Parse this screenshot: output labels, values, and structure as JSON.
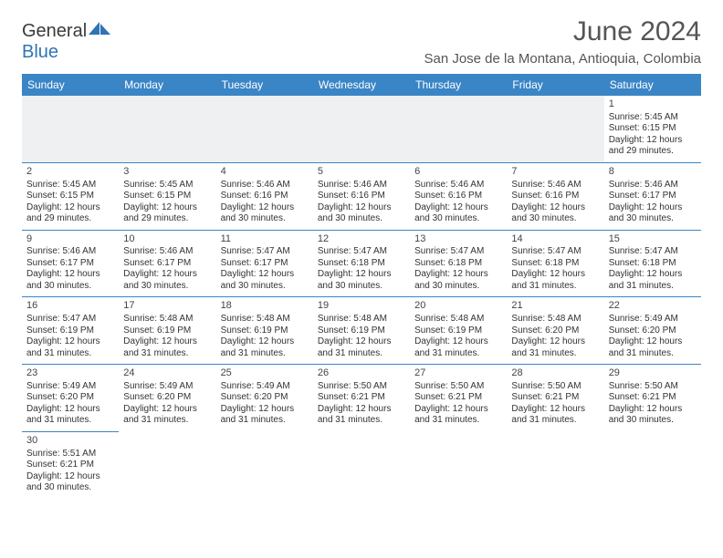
{
  "logo": {
    "text1": "General",
    "text2": "Blue"
  },
  "title": "June 2024",
  "location": "San Jose de la Montana, Antioquia, Colombia",
  "header_bg": "#3a85c6",
  "border_color": "#3a85c6",
  "days_of_week": [
    "Sunday",
    "Monday",
    "Tuesday",
    "Wednesday",
    "Thursday",
    "Friday",
    "Saturday"
  ],
  "weeks": [
    [
      null,
      null,
      null,
      null,
      null,
      null,
      {
        "n": "1",
        "sr": "Sunrise: 5:45 AM",
        "ss": "Sunset: 6:15 PM",
        "d1": "Daylight: 12 hours",
        "d2": "and 29 minutes."
      }
    ],
    [
      {
        "n": "2",
        "sr": "Sunrise: 5:45 AM",
        "ss": "Sunset: 6:15 PM",
        "d1": "Daylight: 12 hours",
        "d2": "and 29 minutes."
      },
      {
        "n": "3",
        "sr": "Sunrise: 5:45 AM",
        "ss": "Sunset: 6:15 PM",
        "d1": "Daylight: 12 hours",
        "d2": "and 29 minutes."
      },
      {
        "n": "4",
        "sr": "Sunrise: 5:46 AM",
        "ss": "Sunset: 6:16 PM",
        "d1": "Daylight: 12 hours",
        "d2": "and 30 minutes."
      },
      {
        "n": "5",
        "sr": "Sunrise: 5:46 AM",
        "ss": "Sunset: 6:16 PM",
        "d1": "Daylight: 12 hours",
        "d2": "and 30 minutes."
      },
      {
        "n": "6",
        "sr": "Sunrise: 5:46 AM",
        "ss": "Sunset: 6:16 PM",
        "d1": "Daylight: 12 hours",
        "d2": "and 30 minutes."
      },
      {
        "n": "7",
        "sr": "Sunrise: 5:46 AM",
        "ss": "Sunset: 6:16 PM",
        "d1": "Daylight: 12 hours",
        "d2": "and 30 minutes."
      },
      {
        "n": "8",
        "sr": "Sunrise: 5:46 AM",
        "ss": "Sunset: 6:17 PM",
        "d1": "Daylight: 12 hours",
        "d2": "and 30 minutes."
      }
    ],
    [
      {
        "n": "9",
        "sr": "Sunrise: 5:46 AM",
        "ss": "Sunset: 6:17 PM",
        "d1": "Daylight: 12 hours",
        "d2": "and 30 minutes."
      },
      {
        "n": "10",
        "sr": "Sunrise: 5:46 AM",
        "ss": "Sunset: 6:17 PM",
        "d1": "Daylight: 12 hours",
        "d2": "and 30 minutes."
      },
      {
        "n": "11",
        "sr": "Sunrise: 5:47 AM",
        "ss": "Sunset: 6:17 PM",
        "d1": "Daylight: 12 hours",
        "d2": "and 30 minutes."
      },
      {
        "n": "12",
        "sr": "Sunrise: 5:47 AM",
        "ss": "Sunset: 6:18 PM",
        "d1": "Daylight: 12 hours",
        "d2": "and 30 minutes."
      },
      {
        "n": "13",
        "sr": "Sunrise: 5:47 AM",
        "ss": "Sunset: 6:18 PM",
        "d1": "Daylight: 12 hours",
        "d2": "and 30 minutes."
      },
      {
        "n": "14",
        "sr": "Sunrise: 5:47 AM",
        "ss": "Sunset: 6:18 PM",
        "d1": "Daylight: 12 hours",
        "d2": "and 31 minutes."
      },
      {
        "n": "15",
        "sr": "Sunrise: 5:47 AM",
        "ss": "Sunset: 6:18 PM",
        "d1": "Daylight: 12 hours",
        "d2": "and 31 minutes."
      }
    ],
    [
      {
        "n": "16",
        "sr": "Sunrise: 5:47 AM",
        "ss": "Sunset: 6:19 PM",
        "d1": "Daylight: 12 hours",
        "d2": "and 31 minutes."
      },
      {
        "n": "17",
        "sr": "Sunrise: 5:48 AM",
        "ss": "Sunset: 6:19 PM",
        "d1": "Daylight: 12 hours",
        "d2": "and 31 minutes."
      },
      {
        "n": "18",
        "sr": "Sunrise: 5:48 AM",
        "ss": "Sunset: 6:19 PM",
        "d1": "Daylight: 12 hours",
        "d2": "and 31 minutes."
      },
      {
        "n": "19",
        "sr": "Sunrise: 5:48 AM",
        "ss": "Sunset: 6:19 PM",
        "d1": "Daylight: 12 hours",
        "d2": "and 31 minutes."
      },
      {
        "n": "20",
        "sr": "Sunrise: 5:48 AM",
        "ss": "Sunset: 6:19 PM",
        "d1": "Daylight: 12 hours",
        "d2": "and 31 minutes."
      },
      {
        "n": "21",
        "sr": "Sunrise: 5:48 AM",
        "ss": "Sunset: 6:20 PM",
        "d1": "Daylight: 12 hours",
        "d2": "and 31 minutes."
      },
      {
        "n": "22",
        "sr": "Sunrise: 5:49 AM",
        "ss": "Sunset: 6:20 PM",
        "d1": "Daylight: 12 hours",
        "d2": "and 31 minutes."
      }
    ],
    [
      {
        "n": "23",
        "sr": "Sunrise: 5:49 AM",
        "ss": "Sunset: 6:20 PM",
        "d1": "Daylight: 12 hours",
        "d2": "and 31 minutes."
      },
      {
        "n": "24",
        "sr": "Sunrise: 5:49 AM",
        "ss": "Sunset: 6:20 PM",
        "d1": "Daylight: 12 hours",
        "d2": "and 31 minutes."
      },
      {
        "n": "25",
        "sr": "Sunrise: 5:49 AM",
        "ss": "Sunset: 6:20 PM",
        "d1": "Daylight: 12 hours",
        "d2": "and 31 minutes."
      },
      {
        "n": "26",
        "sr": "Sunrise: 5:50 AM",
        "ss": "Sunset: 6:21 PM",
        "d1": "Daylight: 12 hours",
        "d2": "and 31 minutes."
      },
      {
        "n": "27",
        "sr": "Sunrise: 5:50 AM",
        "ss": "Sunset: 6:21 PM",
        "d1": "Daylight: 12 hours",
        "d2": "and 31 minutes."
      },
      {
        "n": "28",
        "sr": "Sunrise: 5:50 AM",
        "ss": "Sunset: 6:21 PM",
        "d1": "Daylight: 12 hours",
        "d2": "and 31 minutes."
      },
      {
        "n": "29",
        "sr": "Sunrise: 5:50 AM",
        "ss": "Sunset: 6:21 PM",
        "d1": "Daylight: 12 hours",
        "d2": "and 30 minutes."
      }
    ],
    [
      {
        "n": "30",
        "sr": "Sunrise: 5:51 AM",
        "ss": "Sunset: 6:21 PM",
        "d1": "Daylight: 12 hours",
        "d2": "and 30 minutes."
      },
      null,
      null,
      null,
      null,
      null,
      null
    ]
  ]
}
